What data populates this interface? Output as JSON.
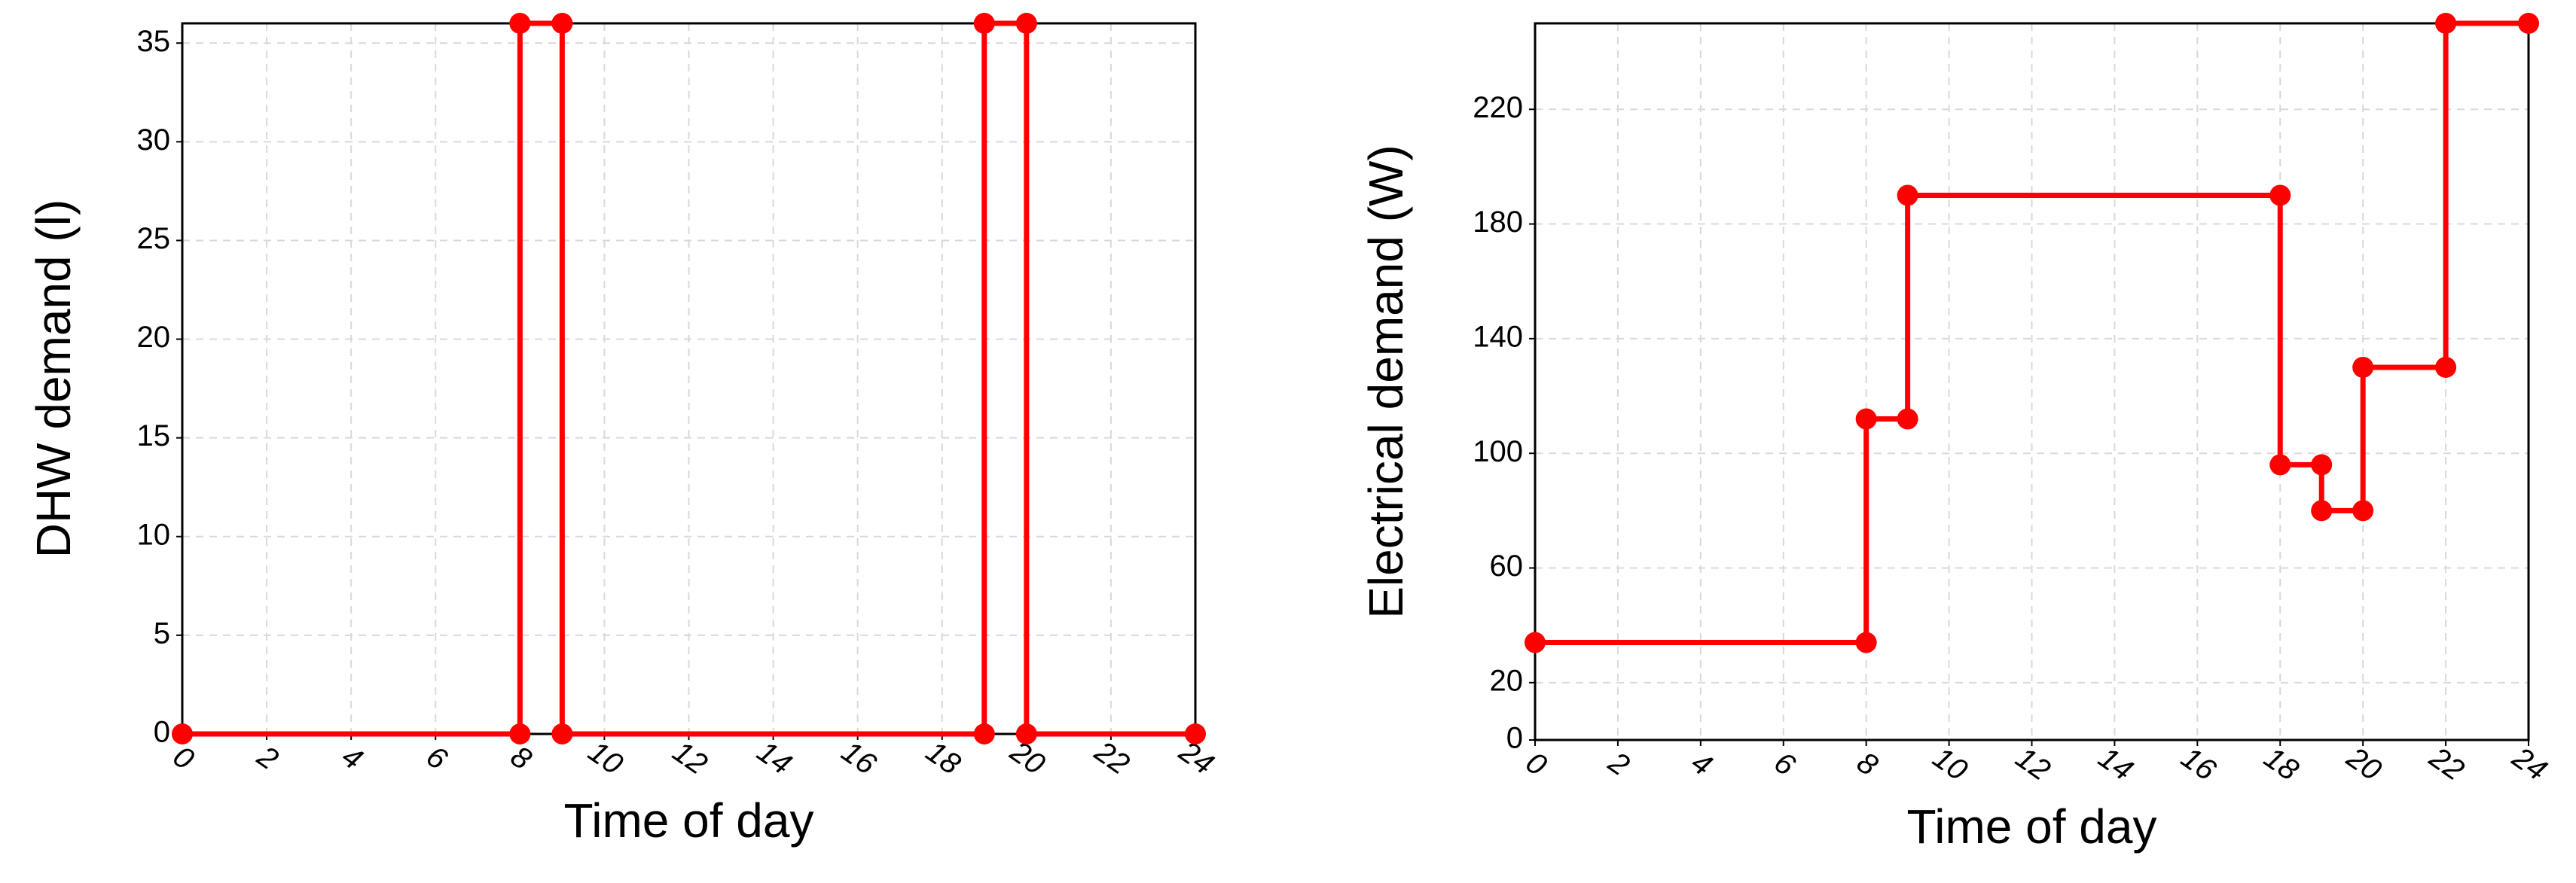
{
  "chart_data": [
    {
      "type": "line",
      "xlabel": "Time of day",
      "ylabel": "DHW demand (l)",
      "x": [
        0,
        8,
        8,
        9,
        9,
        19,
        19,
        20,
        20,
        24
      ],
      "series": [
        {
          "color": "#ff0000",
          "values": [
            0,
            0,
            36,
            36,
            0,
            0,
            36,
            36,
            0,
            0
          ]
        }
      ],
      "xlim": [
        0,
        24
      ],
      "xticks": [
        0,
        2,
        4,
        6,
        8,
        10,
        12,
        14,
        16,
        18,
        20,
        22,
        24
      ],
      "ylim": [
        0,
        36
      ],
      "yticks": [
        0,
        5,
        10,
        15,
        20,
        25,
        30,
        35
      ],
      "grid": true
    },
    {
      "type": "line",
      "xlabel": "Time of day",
      "ylabel": "Electrical demand (W)",
      "x": [
        0,
        8,
        8,
        9,
        9,
        18,
        18,
        19,
        19,
        20,
        20,
        22,
        22,
        24
      ],
      "series": [
        {
          "color": "#ff0000",
          "values": [
            34,
            34,
            112,
            112,
            190,
            190,
            96,
            96,
            80,
            80,
            130,
            130,
            250,
            250
          ]
        }
      ],
      "xlim": [
        0,
        24
      ],
      "xticks": [
        0,
        2,
        4,
        6,
        8,
        10,
        12,
        14,
        16,
        18,
        20,
        22,
        24
      ],
      "ylim": [
        0,
        250
      ],
      "yticks": [
        0,
        20,
        60,
        100,
        140,
        180,
        220
      ],
      "grid": true
    }
  ]
}
